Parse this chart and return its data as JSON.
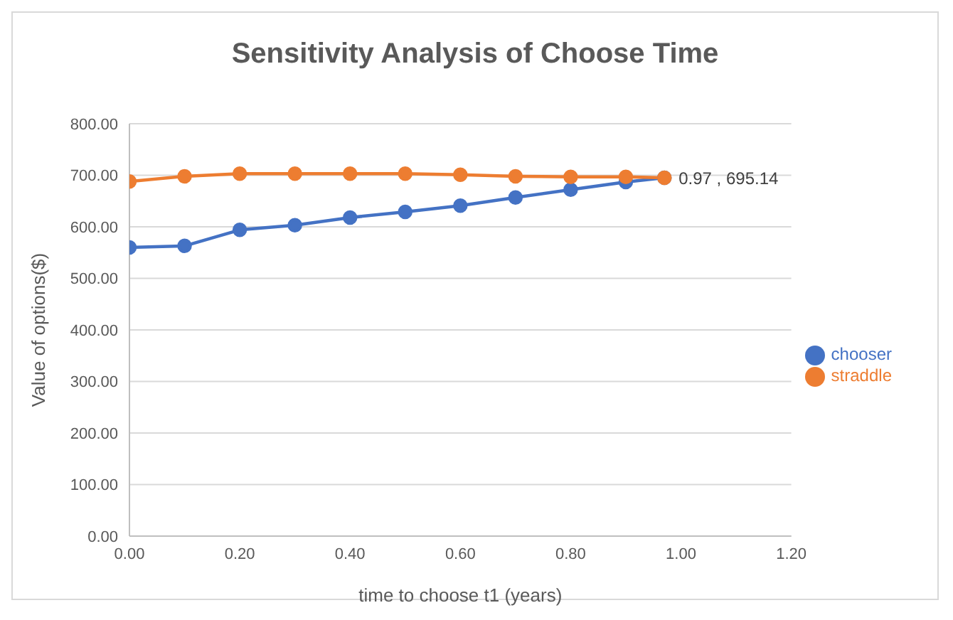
{
  "chart_data": {
    "type": "line",
    "title": "Sensitivity Analysis of Choose Time",
    "xlabel": "time to choose t1 (years)",
    "ylabel": "Value of options($)",
    "x": [
      0,
      0.1,
      0.2,
      0.3,
      0.4,
      0.5,
      0.6,
      0.7,
      0.8,
      0.9,
      0.97
    ],
    "series": [
      {
        "name": "chooser",
        "color": "#4472c4",
        "values": [
          560,
          563,
          594,
          603,
          618,
          629,
          641,
          657,
          672,
          687,
          695.14
        ]
      },
      {
        "name": "straddle",
        "color": "#ed7d31",
        "values": [
          688,
          698,
          703,
          703,
          703,
          703,
          701,
          698,
          697,
          697,
          695.14
        ]
      }
    ],
    "xlim": [
      0,
      1.2
    ],
    "xticks": [
      {
        "value": 0,
        "label": "0.00"
      },
      {
        "value": 0.2,
        "label": "0.20"
      },
      {
        "value": 0.4,
        "label": "0.40"
      },
      {
        "value": 0.6,
        "label": "0.60"
      },
      {
        "value": 0.8,
        "label": "0.80"
      },
      {
        "value": 1,
        "label": "1.00"
      },
      {
        "value": 1.2,
        "label": "1.20"
      }
    ],
    "ylim": [
      0,
      800
    ],
    "yticks": [
      {
        "value": 0,
        "label": "0.00"
      },
      {
        "value": 100,
        "label": "100.00"
      },
      {
        "value": 200,
        "label": "200.00"
      },
      {
        "value": 300,
        "label": "300.00"
      },
      {
        "value": 400,
        "label": "400.00"
      },
      {
        "value": 500,
        "label": "500.00"
      },
      {
        "value": 600,
        "label": "600.00"
      },
      {
        "value": 700,
        "label": "700.00"
      },
      {
        "value": 800,
        "label": "800.00"
      }
    ],
    "annotations": [
      {
        "text": "0.97 , 695.14",
        "x": 0.97,
        "y": 695.14
      }
    ],
    "grid": "y",
    "legend": "right",
    "marker": "circle",
    "line_style": "solid"
  }
}
